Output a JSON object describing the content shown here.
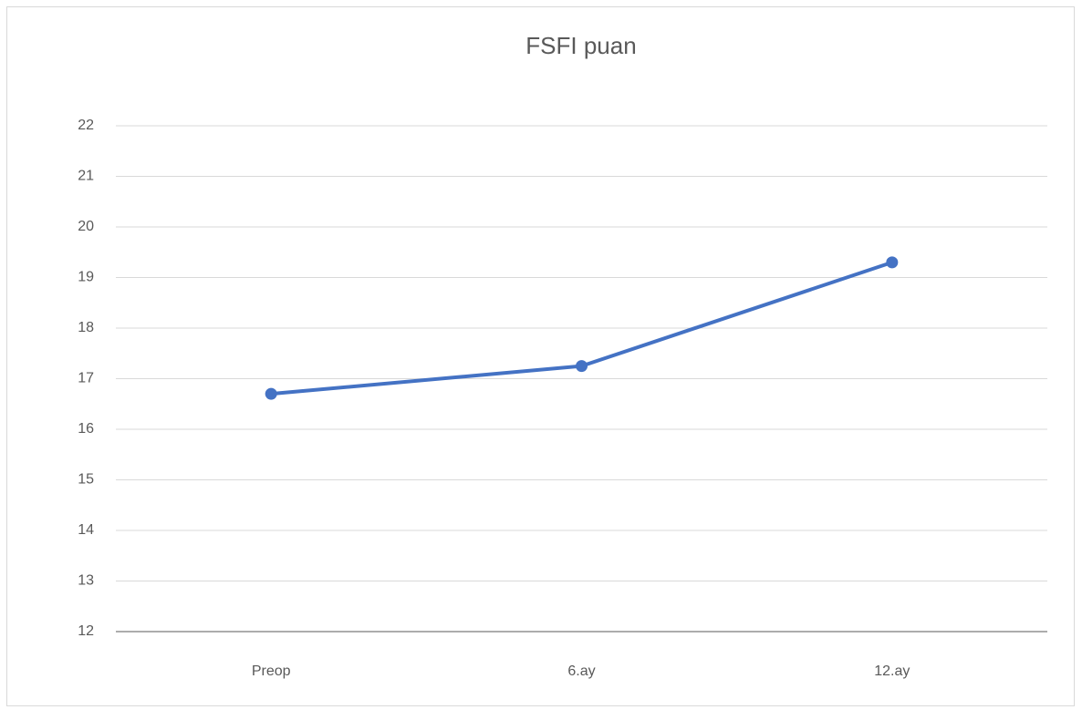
{
  "chart_data": {
    "type": "line",
    "title": "FSFI puan",
    "categories": [
      "Preop",
      "6.ay",
      "12.ay"
    ],
    "series": [
      {
        "name": "FSFI puan",
        "color": "#4472c4",
        "values": [
          16.7,
          17.25,
          19.3
        ]
      }
    ],
    "ylim": [
      12,
      22
    ],
    "yticks": [
      12,
      13,
      14,
      15,
      16,
      17,
      18,
      19,
      20,
      21,
      22
    ],
    "grid": true
  }
}
